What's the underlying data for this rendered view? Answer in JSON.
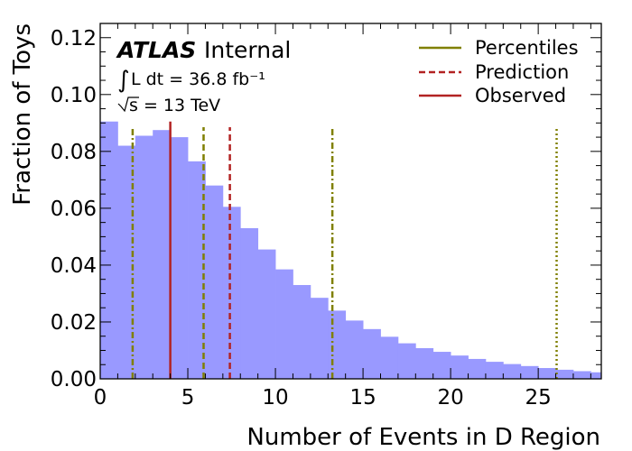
{
  "chart_data": {
    "type": "bar",
    "xlabel": "Number of Events in D Region",
    "ylabel": "Fraction of Toys",
    "xlim": [
      0,
      28.6
    ],
    "ylim": [
      0,
      0.125
    ],
    "xticks": [
      "0",
      "5",
      "10",
      "15",
      "20",
      "25"
    ],
    "yticks": [
      "0.00",
      "0.02",
      "0.04",
      "0.06",
      "0.08",
      "0.10",
      "0.12"
    ],
    "bin_width": 1.0,
    "bar_color": "#9999ff",
    "values": [
      0.0905,
      0.082,
      0.0855,
      0.0875,
      0.085,
      0.0765,
      0.068,
      0.0605,
      0.053,
      0.0455,
      0.0385,
      0.033,
      0.0285,
      0.024,
      0.0205,
      0.0175,
      0.0148,
      0.0125,
      0.0108,
      0.0095,
      0.0082,
      0.007,
      0.006,
      0.0052,
      0.0045,
      0.0038,
      0.0032,
      0.0027,
      0.0023
    ],
    "lines": [
      {
        "name": "Percentiles",
        "x": 1.85,
        "color": "#808000",
        "style": "dashdot"
      },
      {
        "name": "Percentiles",
        "x": 5.9,
        "color": "#808000",
        "style": "dashed"
      },
      {
        "name": "Percentiles",
        "x": 13.25,
        "color": "#808000",
        "style": "dashdot"
      },
      {
        "name": "Percentiles",
        "x": 26.05,
        "color": "#808000",
        "style": "dotted"
      },
      {
        "name": "Prediction",
        "x": 7.4,
        "color": "#b22222",
        "style": "dashed"
      },
      {
        "name": "Observed",
        "x": 4.0,
        "color": "#b22222",
        "style": "solid"
      }
    ],
    "legend": {
      "position": "top-right",
      "entries": [
        {
          "label": "Percentiles",
          "color": "#808000",
          "style": "solid"
        },
        {
          "label": "Prediction",
          "color": "#b22222",
          "style": "dashed"
        },
        {
          "label": "Observed",
          "color": "#b22222",
          "style": "solid"
        }
      ]
    },
    "annotation": {
      "atlas": "ATLAS",
      "internal": "Internal",
      "lumi": "L dt = 36.8 fb⁻¹",
      "energy": "s = 13 TeV"
    }
  }
}
